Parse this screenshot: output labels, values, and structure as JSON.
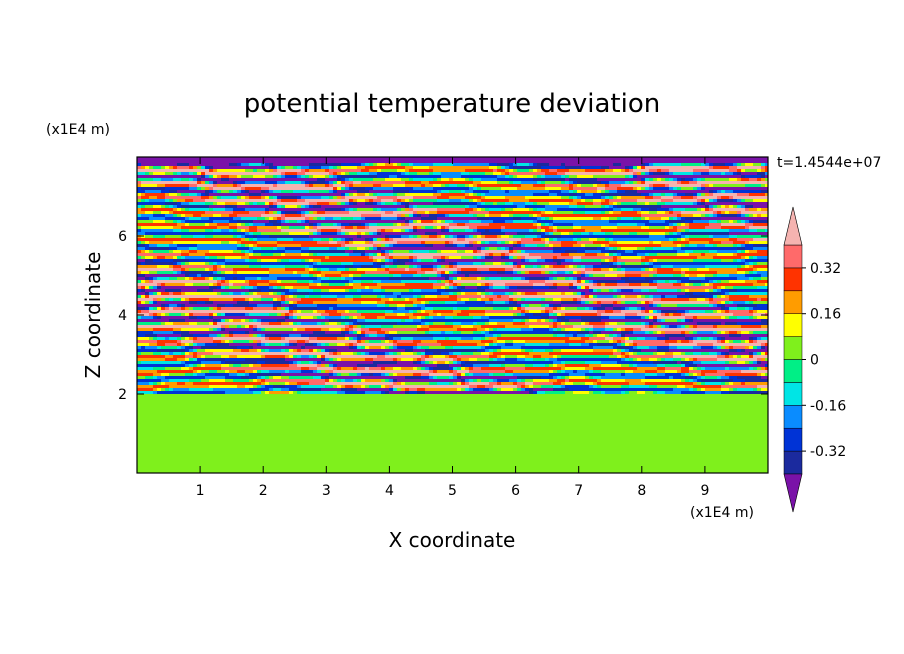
{
  "chart_data": {
    "type": "heatmap",
    "title": "potential temperature deviation",
    "xlabel": "X coordinate",
    "ylabel": "Z coordinate",
    "x_unit": "(x1E4 m)",
    "y_unit": "(x1E4 m)",
    "time_label": "t=1.4544e+07",
    "xlim": [
      0,
      10
    ],
    "ylim": [
      0,
      8
    ],
    "x_ticks": [
      1,
      2,
      3,
      4,
      5,
      6,
      7,
      8,
      9
    ],
    "y_ticks": [
      2,
      4,
      6
    ],
    "colorbar": {
      "levels": [
        -0.4,
        -0.32,
        -0.24,
        -0.16,
        -0.08,
        0,
        0.08,
        0.16,
        0.24,
        0.32,
        0.4
      ],
      "labels": [
        "0.32",
        "0.16",
        "0",
        "-0.16",
        "-0.32"
      ],
      "label_values": [
        0.32,
        0.16,
        0,
        -0.16,
        -0.32
      ],
      "colors": [
        "#7a12a8",
        "#1b2a9e",
        "#0033d6",
        "#0a8cff",
        "#00e5e5",
        "#00ef86",
        "#7ff01c",
        "#ffff00",
        "#ff9c00",
        "#ff3300",
        "#ff6a6a",
        "#f5b3b0"
      ],
      "extend": "both"
    },
    "regions": {
      "lower_layer": {
        "z_range": [
          0,
          2
        ],
        "description_values": [
          0,
          0.08
        ]
      },
      "upper_layer": {
        "z_range": [
          2,
          8
        ],
        "amplitude": [
          -0.4,
          0.4
        ]
      }
    }
  }
}
